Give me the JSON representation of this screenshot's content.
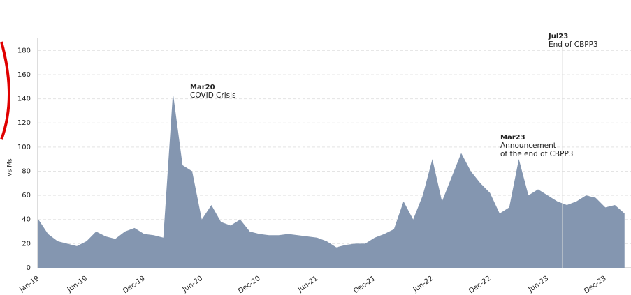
{
  "chart_data": {
    "type": "area",
    "y_label": "vs Ms",
    "categories": [
      "Jan-19",
      null,
      null,
      null,
      null,
      "Jun-19",
      null,
      null,
      null,
      null,
      null,
      "Dec-19",
      null,
      null,
      null,
      null,
      null,
      "Jun-20",
      null,
      null,
      null,
      null,
      null,
      "Dec-20",
      null,
      null,
      null,
      null,
      null,
      "Jun-21",
      null,
      null,
      null,
      null,
      null,
      "Dec-21",
      null,
      null,
      null,
      null,
      null,
      "Jun-22",
      null,
      null,
      null,
      null,
      null,
      "Dec-22",
      null,
      null,
      null,
      null,
      null,
      "Jun-23",
      null,
      null,
      null,
      null,
      null,
      "Dec-23",
      null,
      null
    ],
    "values": [
      40,
      28,
      22,
      20,
      18,
      22,
      30,
      26,
      24,
      30,
      33,
      28,
      27,
      25,
      145,
      85,
      80,
      40,
      52,
      38,
      35,
      40,
      30,
      28,
      27,
      27,
      28,
      27,
      26,
      25,
      22,
      17,
      19,
      20,
      20,
      25,
      28,
      32,
      55,
      40,
      60,
      90,
      55,
      75,
      95,
      80,
      70,
      62,
      45,
      50,
      90,
      60,
      65,
      60,
      55,
      52,
      55,
      60,
      58,
      50,
      52,
      45
    ],
    "color": "#8496b0",
    "ylim": [
      0,
      190
    ],
    "yticks": [
      0,
      20,
      40,
      60,
      80,
      100,
      120,
      140,
      160,
      180
    ],
    "grid": true,
    "annotations": [
      {
        "title": "Mar20",
        "lines": [
          "COVID Crisis"
        ]
      },
      {
        "title": "Mar23",
        "lines": [
          "Announcement",
          "of the end of CBPP3"
        ]
      },
      {
        "title": "Jul23",
        "lines": [
          "End of CBPP3"
        ]
      }
    ]
  }
}
